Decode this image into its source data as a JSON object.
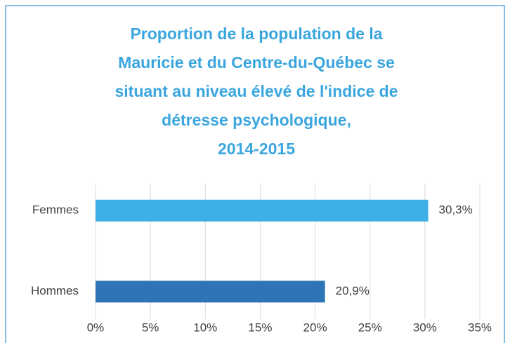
{
  "chart_data": {
    "type": "hbar",
    "title": [
      "Proportion de la population de la",
      "Mauricie et du Centre-du-Québec se",
      "situant au niveau élevé de l'indice de",
      "détresse psychologique,",
      "2014-2015"
    ],
    "categories": [
      "Femmes",
      "Hommes"
    ],
    "values": [
      30.3,
      20.9
    ],
    "value_labels": [
      "30,3%",
      "20,9%"
    ],
    "colors": [
      "#3daee6",
      "#2e75b6"
    ],
    "xlim": [
      0,
      35
    ],
    "xticks": [
      {
        "value": 0,
        "label": "0%"
      },
      {
        "value": 5,
        "label": "5%"
      },
      {
        "value": 10,
        "label": "10%"
      },
      {
        "value": 15,
        "label": "15%"
      },
      {
        "value": 20,
        "label": "20%"
      },
      {
        "value": 25,
        "label": "25%"
      },
      {
        "value": 30,
        "label": "30%"
      },
      {
        "value": 35,
        "label": "35%"
      }
    ],
    "grid": true
  }
}
